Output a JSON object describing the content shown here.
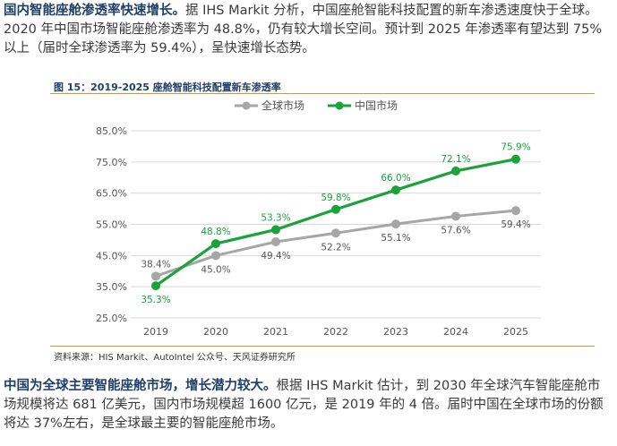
{
  "intro": {
    "lead": "国内智能座舱渗透率快速增长。",
    "body": "据 IHS Markit 分析，中国座舱智能科技配置的新车渗透速度快于全球。2020 年中国市场智能座舱渗透率为 48.8%，仍有较大增长空间。预计到 2025 年渗透率有望达到 75%以上（届时全球渗透率为 59.4%），呈快速增长态势。"
  },
  "figure": {
    "title": "图 15：2019-2025 座舱智能科技配置新车渗透率",
    "source": "资料来源：HIS Markit、AutoIntel 公众号、天风证券研究所"
  },
  "outro": {
    "lead": "中国为全球主要智能座舱市场，增长潜力较大。",
    "body": "根据 IHS Markit 估计，到 2030 年全球汽车智能座舱市场规模将达 681 亿美元，国内市场规模超 1600 亿元，是 2019 年的 4 倍。届时中国在全球市场的份额将达 37%左右，是全球最主要的智能座舱市场。"
  },
  "colors": {
    "global": "#a6a6a6",
    "china": "#1aa33a",
    "accent": "#c99a3c",
    "navy": "#1f3f66"
  },
  "chart_data": {
    "type": "line",
    "title": "2019-2025 座舱智能科技配置新车渗透率",
    "categories": [
      "2019",
      "2020",
      "2021",
      "2022",
      "2023",
      "2024",
      "2025"
    ],
    "ylim": [
      25,
      85
    ],
    "yticks": [
      "25.0%",
      "35.0%",
      "45.0%",
      "55.0%",
      "65.0%",
      "75.0%",
      "85.0%"
    ],
    "legend_position": "top-center",
    "series": [
      {
        "name": "全球市场",
        "values": [
          38.4,
          45.0,
          49.4,
          52.2,
          55.1,
          57.6,
          59.4
        ],
        "labels": [
          "38.4%",
          "45.0%",
          "49.4%",
          "52.2%",
          "55.1%",
          "57.6%",
          "59.4%"
        ]
      },
      {
        "name": "中国市场",
        "values": [
          35.3,
          48.8,
          53.3,
          59.8,
          66.0,
          72.1,
          75.9
        ],
        "labels": [
          "35.3%",
          "48.8%",
          "53.3%",
          "59.8%",
          "66.0%",
          "72.1%",
          "75.9%"
        ]
      }
    ]
  }
}
